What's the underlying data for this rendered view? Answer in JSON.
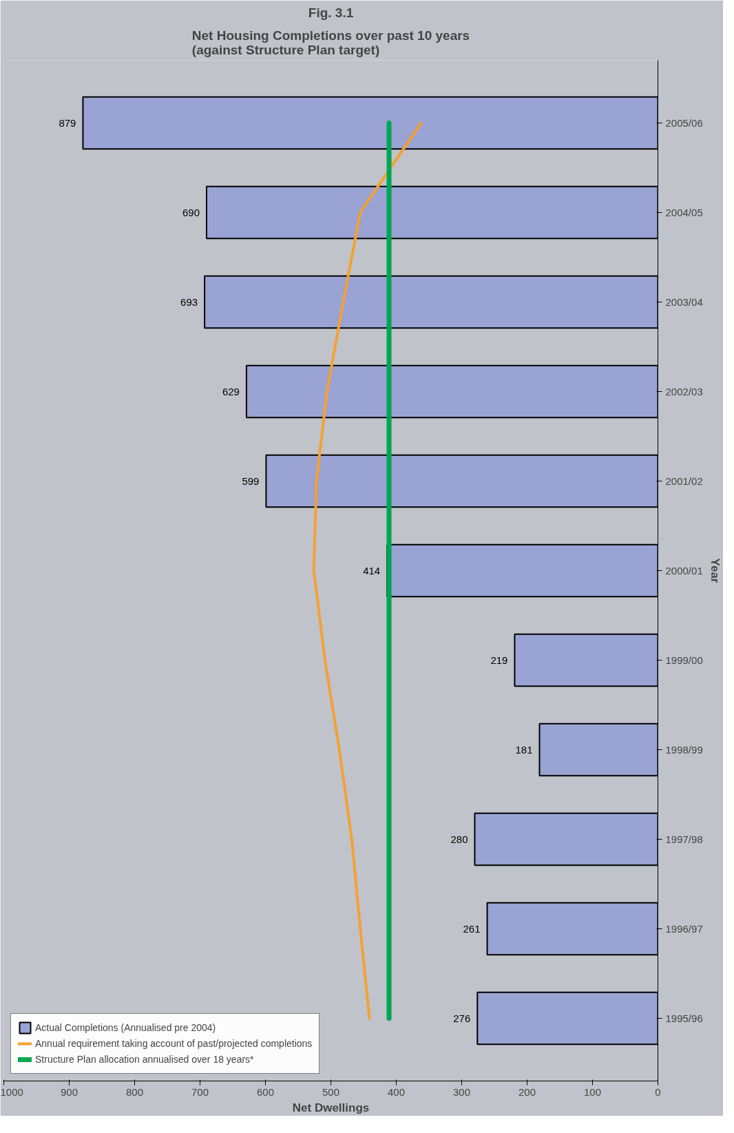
{
  "chart_data": {
    "type": "bar",
    "orientation": "horizontal",
    "title": "Fig. 3.1",
    "subtitle": "Net Housing Completions over past 10 years\n(against Structure Plan target)",
    "xlabel": "Net Dwellings",
    "ylabel": "Year",
    "categories": [
      "2005/06",
      "2004/05",
      "2003/04",
      "2002/03",
      "2001/02",
      "2000/01",
      "1999/00",
      "1998/99",
      "1997/98",
      "1996/97",
      "1995/96"
    ],
    "series": [
      {
        "name": "Actual Completions (Annualised pre 2004)",
        "color": "#99a3d4",
        "values": [
          879,
          690,
          693,
          629,
          599,
          414,
          219,
          181,
          280,
          261,
          276
        ],
        "value_labels": [
          "879",
          "690",
          "693",
          "629",
          "599",
          "414",
          "219",
          "181",
          "280",
          "261",
          "276"
        ]
      },
      {
        "type": "line",
        "name": "Annual requirement taking account of past/projected completions",
        "color": "#f5a030",
        "values": [
          362,
          455,
          481,
          506,
          522,
          526,
          509,
          487,
          468,
          455,
          441
        ]
      },
      {
        "type": "line",
        "name": "Structure Plan allocation annualised over 18 years*",
        "color": "#00a651",
        "values": [
          411,
          411,
          411,
          411,
          411,
          411,
          411,
          411,
          411,
          411,
          411
        ]
      }
    ],
    "xlim": [
      1000,
      0
    ],
    "xticks": [
      0,
      100,
      200,
      300,
      400,
      500,
      600,
      700,
      800,
      900,
      1000
    ],
    "legend": "bottom left",
    "grid": false
  }
}
